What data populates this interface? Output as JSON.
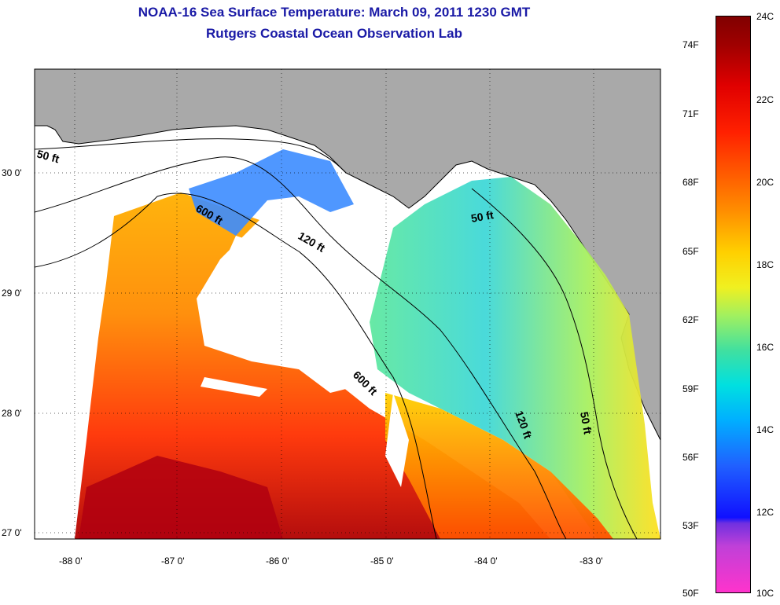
{
  "title_line1": "NOAA-16 Sea Surface Temperature:  March 09, 2011 1230 GMT",
  "title_line2": "Rutgers Coastal Ocean Observation Lab",
  "axes": {
    "x_labels": [
      "-88 0'",
      "-87 0'",
      "-86 0'",
      "-85 0'",
      "-84 0'",
      "-83 0'"
    ],
    "y_labels": [
      "30 0'",
      "29 0'",
      "28 0'",
      "27 0'"
    ]
  },
  "contour_labels": [
    "50 ft",
    "600 ft",
    "120 ft",
    "50 ft",
    "600 ft",
    "120 ft",
    "50 ft"
  ],
  "colorbar": {
    "fahrenheit": [
      "74F",
      "71F",
      "68F",
      "65F",
      "62F",
      "59F",
      "56F",
      "53F",
      "50F"
    ],
    "celsius": [
      "24C",
      "22C",
      "20C",
      "18C",
      "16C",
      "14C",
      "12C",
      "10C"
    ]
  },
  "colors": {
    "land": "#a9a9a9",
    "title": "#1a1aa6"
  }
}
